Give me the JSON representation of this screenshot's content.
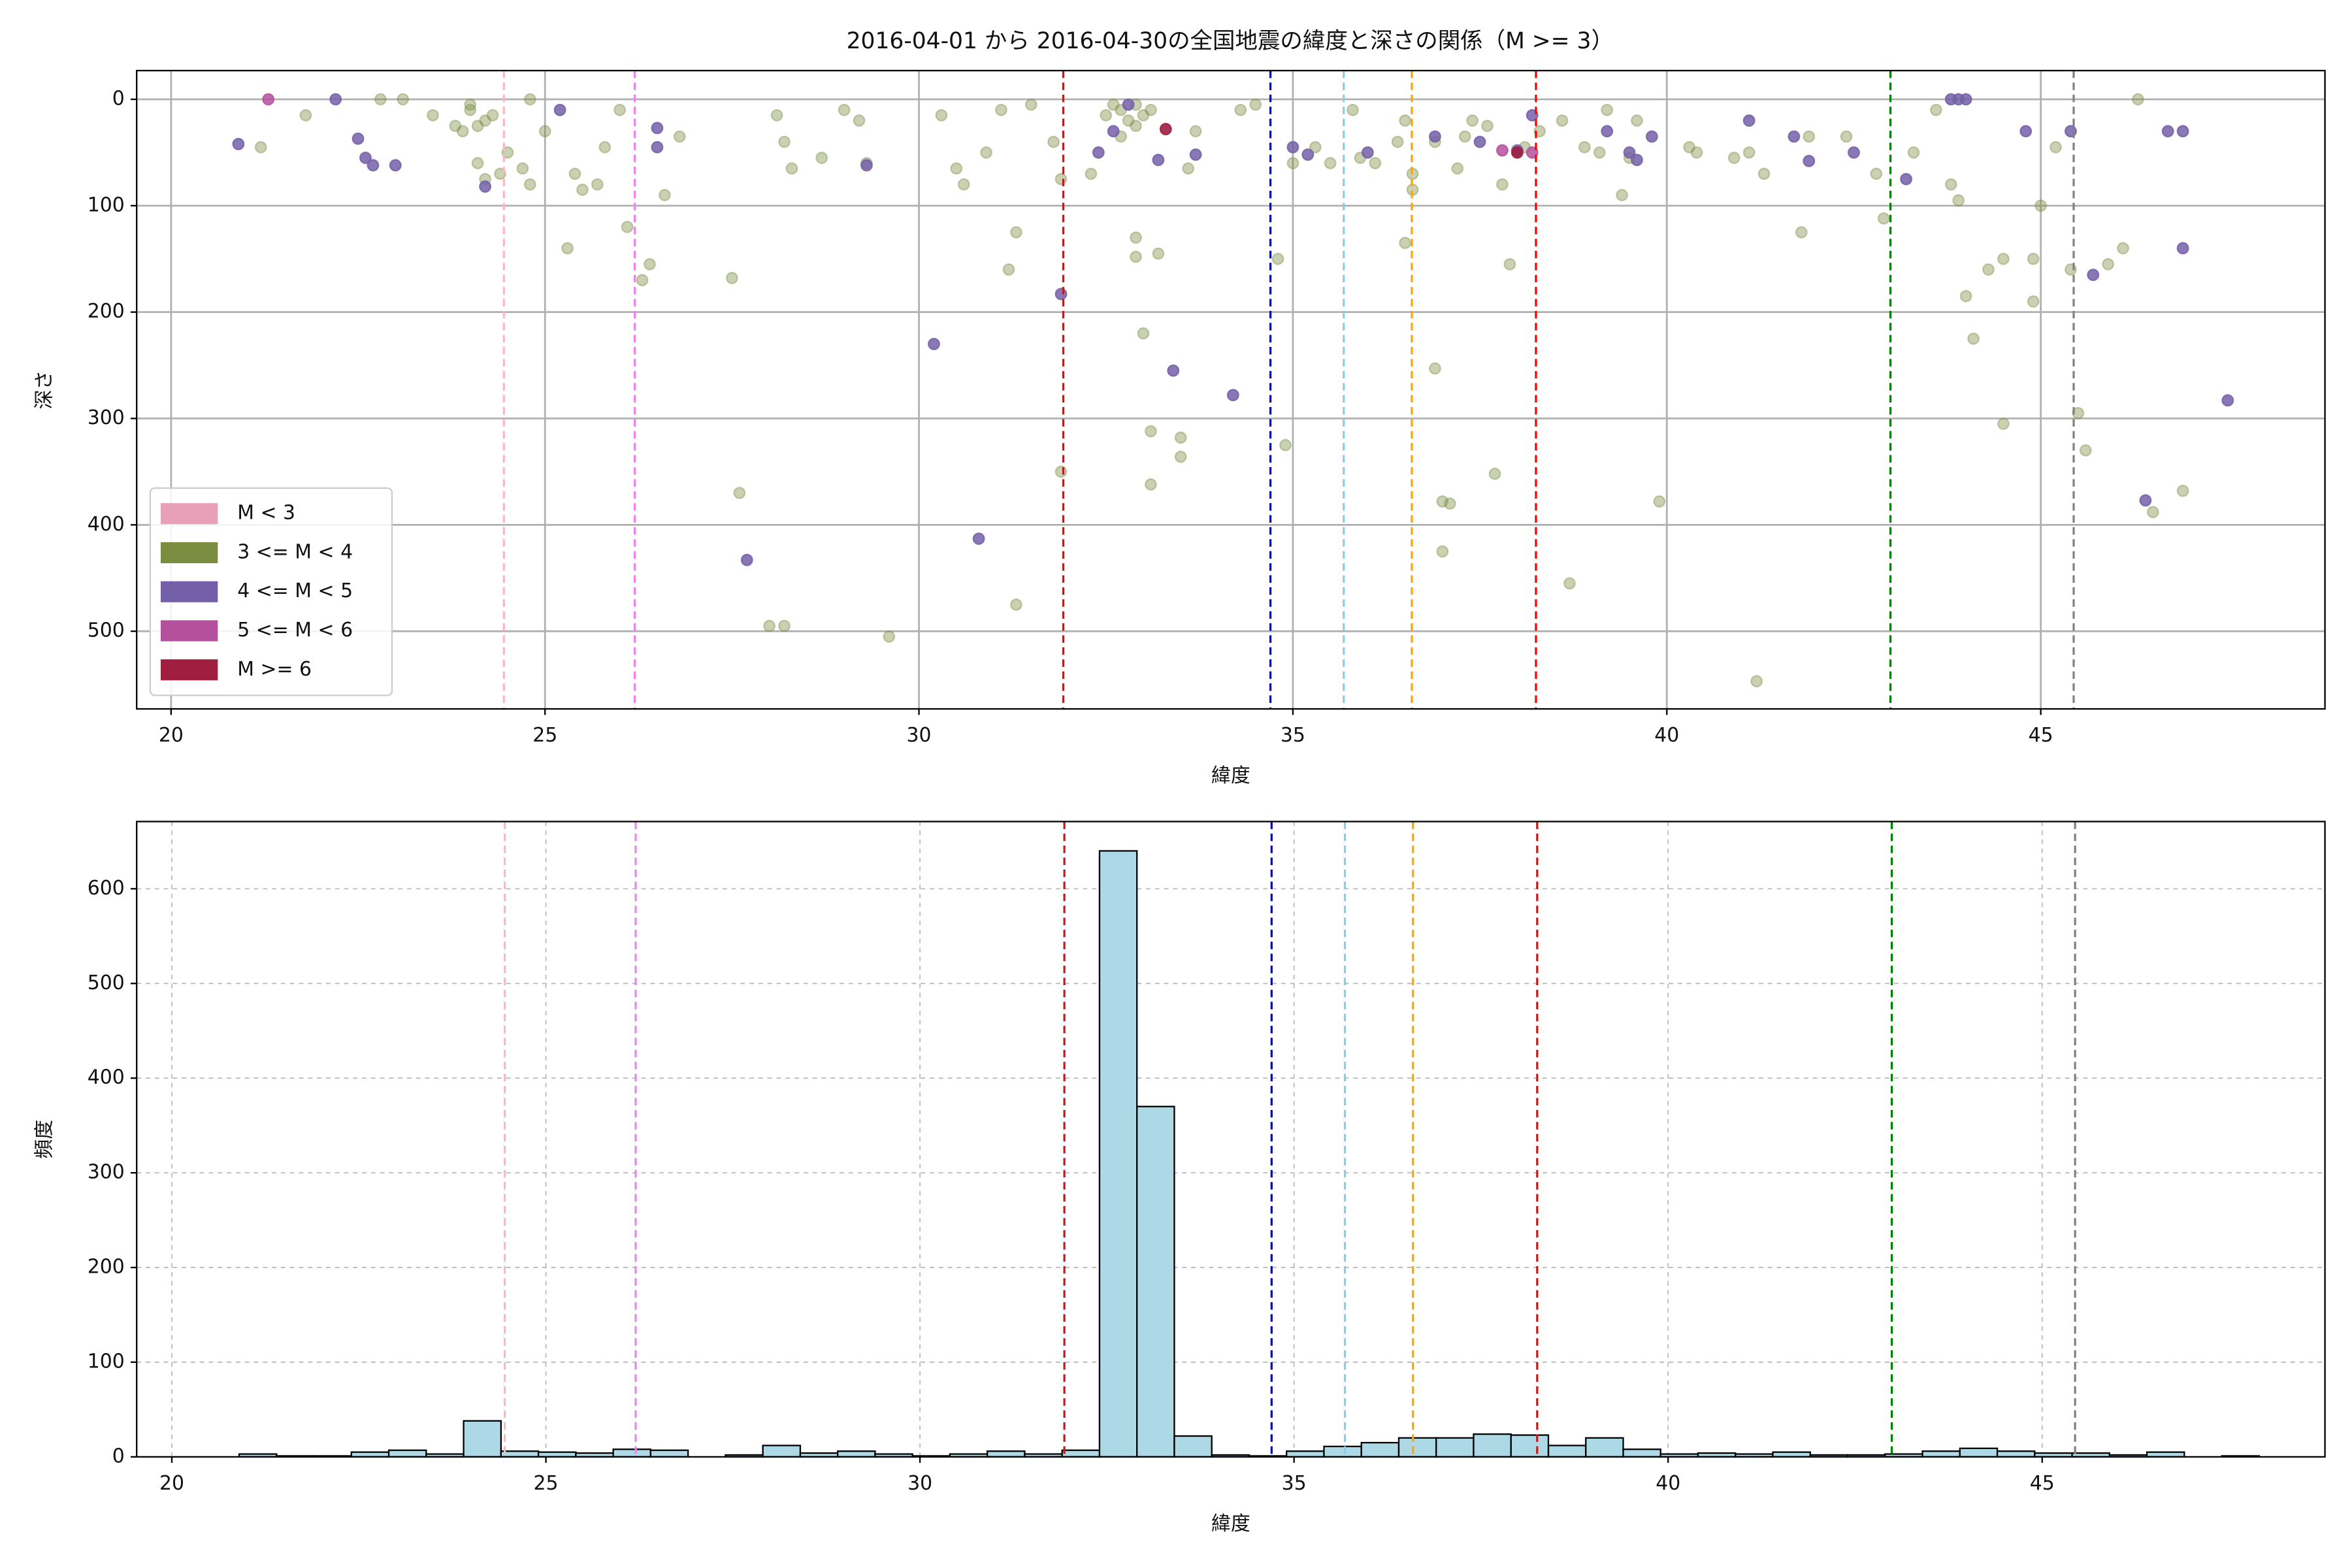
{
  "chart_data": [
    {
      "type": "scatter",
      "title": "2016-04-01 から 2016-04-30の全国地震の緯度と深さの関係（M >= 3）",
      "x_label": "緯度",
      "y_label": "深さ",
      "xlim": [
        19.54,
        48.8
      ],
      "ylim": [
        573,
        -27
      ],
      "xticks": [
        20,
        25,
        30,
        35,
        40,
        45
      ],
      "yticks": [
        0,
        100,
        200,
        300,
        400,
        500
      ],
      "grid": "solid",
      "legend": "lower left",
      "vlines": [
        {
          "x": 24.45,
          "color": "#ffb6c1"
        },
        {
          "x": 26.2,
          "color": "#ee82ee"
        },
        {
          "x": 31.93,
          "color": "#b22222"
        },
        {
          "x": 34.7,
          "color": "#0000cd"
        },
        {
          "x": 35.68,
          "color": "#87ceeb"
        },
        {
          "x": 36.59,
          "color": "#ffa500"
        },
        {
          "x": 38.25,
          "color": "#ff0000"
        },
        {
          "x": 42.99,
          "color": "#008000"
        },
        {
          "x": 45.44,
          "color": "#808080"
        }
      ],
      "series": [
        {
          "name": "M < 3",
          "color": "#e8a0b8",
          "alpha": 0.8,
          "x": [],
          "values": []
        },
        {
          "name": "3 <= M < 4",
          "color": "#7a8c40",
          "alpha": 0.4,
          "x": [
            24.0,
            24.1,
            24.2,
            23.9,
            24.3,
            24.1,
            24.2,
            24.4,
            24.0,
            23.8,
            24.5,
            24.7,
            24.8,
            25.0,
            25.3,
            25.4,
            25.5,
            25.7,
            25.8,
            26.0,
            26.1,
            26.3,
            26.4,
            26.6,
            26.8,
            21.2,
            21.8,
            22.8,
            23.1,
            23.5,
            24.8,
            27.5,
            27.6,
            28.0,
            28.2,
            28.1,
            28.2,
            28.3,
            28.7,
            29.0,
            29.2,
            29.3,
            29.6,
            30.3,
            30.5,
            30.6,
            30.9,
            31.1,
            31.2,
            31.3,
            31.3,
            31.5,
            31.8,
            31.9,
            31.9,
            32.3,
            32.5,
            32.6,
            32.7,
            32.8,
            32.9,
            33.0,
            33.1,
            32.9,
            32.7,
            32.9,
            32.9,
            33.2,
            33.0,
            33.1,
            33.1,
            33.5,
            33.5,
            33.6,
            33.7,
            34.3,
            34.5,
            34.8,
            34.9,
            35.0,
            35.3,
            35.5,
            35.8,
            35.9,
            36.1,
            36.4,
            36.5,
            36.6,
            36.5,
            36.6,
            36.9,
            36.9,
            37.0,
            37.0,
            37.1,
            37.2,
            37.3,
            37.4,
            37.6,
            37.8,
            37.9,
            37.7,
            38.1,
            38.3,
            38.6,
            38.7,
            38.9,
            39.1,
            39.2,
            39.4,
            39.5,
            39.6,
            39.9,
            40.3,
            40.4,
            40.9,
            41.1,
            41.2,
            41.3,
            41.8,
            41.9,
            42.4,
            42.8,
            42.9,
            43.3,
            43.6,
            43.8,
            43.9,
            44.0,
            44.1,
            44.3,
            44.5,
            44.5,
            44.9,
            44.9,
            45.0,
            45.2,
            45.4,
            45.5,
            45.6,
            45.9,
            46.1,
            46.3,
            46.9,
            46.5
          ],
          "values": [
            10,
            25,
            20,
            30,
            15,
            60,
            75,
            70,
            5,
            25,
            50,
            65,
            80,
            30,
            140,
            70,
            85,
            80,
            45,
            10,
            120,
            170,
            155,
            90,
            35,
            45,
            15,
            0,
            0,
            15,
            0,
            168,
            370,
            495,
            495,
            15,
            40,
            65,
            55,
            10,
            20,
            60,
            505,
            15,
            65,
            80,
            50,
            10,
            160,
            125,
            475,
            5,
            40,
            350,
            75,
            70,
            15,
            5,
            10,
            20,
            5,
            15,
            10,
            25,
            35,
            130,
            148,
            145,
            220,
            312,
            362,
            318,
            336,
            65,
            30,
            10,
            5,
            150,
            325,
            60,
            45,
            60,
            10,
            55,
            60,
            40,
            20,
            85,
            135,
            70,
            40,
            253,
            378,
            425,
            380,
            65,
            35,
            20,
            25,
            80,
            155,
            352,
            45,
            30,
            20,
            455,
            45,
            50,
            10,
            90,
            55,
            20,
            378,
            45,
            50,
            55,
            50,
            547,
            70,
            125,
            35,
            35,
            70,
            112,
            50,
            10,
            80,
            95,
            185,
            225,
            160,
            305,
            150,
            150,
            190,
            100,
            45,
            160,
            295,
            330,
            155,
            140,
            0,
            368,
            388
          ]
        },
        {
          "name": "4 <= M < 5",
          "color": "#7460a8",
          "alpha": 0.85,
          "x": [
            20.9,
            22.2,
            22.5,
            22.6,
            22.7,
            23.0,
            24.2,
            25.2,
            26.5,
            26.5,
            29.3,
            30.2,
            30.8,
            27.7,
            31.9,
            32.4,
            32.6,
            32.8,
            33.2,
            33.4,
            33.7,
            34.2,
            35.0,
            35.2,
            36.0,
            36.9,
            37.5,
            38.0,
            38.2,
            39.2,
            39.5,
            39.6,
            39.8,
            41.1,
            41.7,
            41.9,
            42.5,
            43.2,
            43.8,
            43.9,
            44.0,
            44.8,
            45.4,
            45.7,
            46.4,
            46.7,
            46.9,
            46.9,
            47.5
          ],
          "values": [
            42,
            0,
            37,
            55,
            62,
            62,
            82,
            10,
            45,
            27,
            62,
            230,
            413,
            433,
            183,
            50,
            30,
            5,
            57,
            255,
            52,
            278,
            45,
            52,
            50,
            35,
            40,
            48,
            15,
            30,
            50,
            57,
            35,
            20,
            35,
            58,
            50,
            75,
            0,
            0,
            0,
            30,
            30,
            165,
            377,
            30,
            30,
            140,
            283
          ]
        },
        {
          "name": "5 <= M < 6",
          "color": "#b4509c",
          "alpha": 0.85,
          "x": [
            21.3,
            38.2,
            37.8
          ],
          "values": [
            0,
            50,
            48
          ]
        },
        {
          "name": "M >= 6",
          "color": "#a01e40",
          "alpha": 0.9,
          "x": [
            33.3,
            38.0
          ],
          "values": [
            28,
            50
          ]
        }
      ]
    },
    {
      "type": "histogram",
      "x_label": "緯度",
      "y_label": "頻度",
      "xlim": [
        19.53,
        48.78
      ],
      "ylim": [
        0,
        671
      ],
      "xticks": [
        20,
        25,
        30,
        35,
        40,
        45
      ],
      "yticks": [
        0,
        100,
        200,
        300,
        400,
        500,
        600
      ],
      "grid": "dashed",
      "color": "#add8e6",
      "vlines": [
        {
          "x": 24.45,
          "color": "#ffb6c1"
        },
        {
          "x": 26.2,
          "color": "#ee82ee"
        },
        {
          "x": 31.93,
          "color": "#b22222"
        },
        {
          "x": 34.7,
          "color": "#0000cd"
        },
        {
          "x": 35.68,
          "color": "#87ceeb"
        },
        {
          "x": 36.59,
          "color": "#ffa500"
        },
        {
          "x": 38.25,
          "color": "#ff0000"
        },
        {
          "x": 42.99,
          "color": "#008000"
        },
        {
          "x": 45.44,
          "color": "#808080"
        }
      ],
      "bins": [
        20.9,
        21.4,
        21.9,
        22.4,
        22.9,
        23.4,
        23.9,
        24.4,
        24.9,
        25.4,
        25.9,
        26.4,
        26.9,
        27.4,
        27.9,
        28.4,
        28.9,
        29.4,
        29.9,
        30.4,
        30.9,
        31.4,
        31.9,
        32.4,
        32.9,
        33.4,
        33.9,
        34.4,
        34.9,
        35.4,
        35.9,
        36.4,
        36.9,
        37.4,
        37.9,
        38.4,
        38.9,
        39.4,
        39.9,
        40.4,
        40.9,
        41.4,
        41.9,
        42.4,
        42.9,
        43.4,
        43.9,
        44.4,
        44.9,
        45.4,
        45.9,
        46.4,
        46.9,
        47.4,
        47.9
      ],
      "values": [
        3,
        1,
        1,
        5,
        7,
        3,
        38,
        6,
        5,
        4,
        8,
        7,
        0,
        2,
        12,
        4,
        6,
        3,
        1,
        3,
        6,
        3,
        7,
        640,
        370,
        22,
        2,
        1,
        6,
        11,
        15,
        20,
        20,
        24,
        23,
        12,
        20,
        8,
        3,
        4,
        3,
        5,
        2,
        2,
        3,
        6,
        9,
        6,
        4,
        4,
        2,
        5,
        0,
        1
      ]
    }
  ]
}
